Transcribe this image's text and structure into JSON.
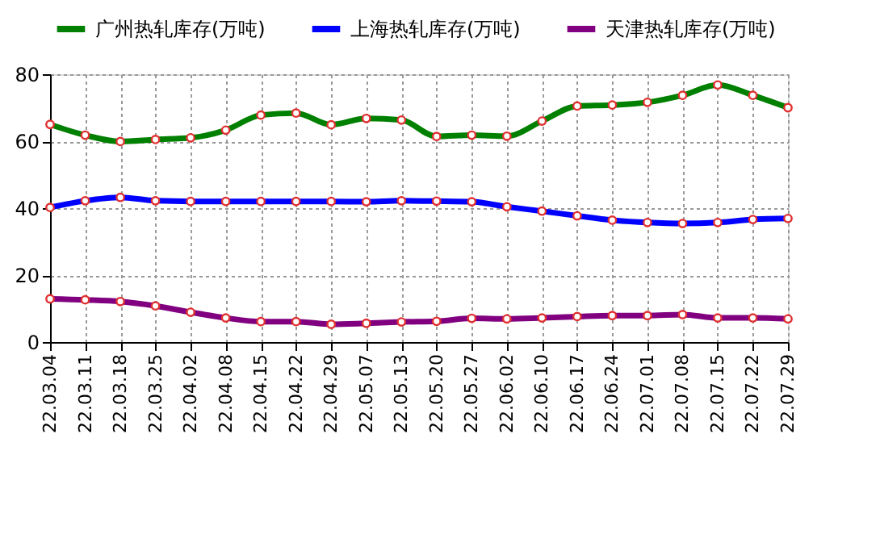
{
  "chart_data": {
    "type": "line",
    "categories": [
      "22.03.04",
      "22.03.11",
      "22.03.18",
      "22.03.25",
      "22.04.02",
      "22.04.08",
      "22.04.15",
      "22.04.22",
      "22.04.29",
      "22.05.07",
      "22.05.13",
      "22.05.20",
      "22.05.27",
      "22.06.02",
      "22.06.10",
      "22.06.17",
      "22.06.24",
      "22.07.01",
      "22.07.08",
      "22.07.15",
      "22.07.22",
      "22.07.29"
    ],
    "series": [
      {
        "name": "广州热轧库存(万吨)",
        "color": "#008000",
        "values": [
          65.0,
          61.8,
          59.9,
          60.5,
          61.0,
          63.3,
          67.8,
          68.4,
          64.9,
          66.8,
          66.3,
          61.4,
          61.8,
          61.5,
          66.0,
          70.5,
          70.8,
          71.6,
          73.7,
          76.8,
          73.7,
          70.0
        ]
      },
      {
        "name": "上海热轧库存(万吨)",
        "color": "#0000ff",
        "values": [
          40.2,
          42.2,
          43.2,
          42.2,
          42.0,
          42.0,
          42.0,
          42.0,
          42.0,
          41.9,
          42.2,
          42.1,
          41.9,
          40.4,
          39.1,
          37.7,
          36.4,
          35.7,
          35.4,
          35.7,
          36.6,
          36.9
        ]
      },
      {
        "name": "天津热轧库存(万吨)",
        "color": "#800080",
        "values": [
          12.9,
          12.6,
          12.1,
          10.8,
          8.9,
          7.2,
          6.1,
          6.1,
          5.3,
          5.6,
          6.0,
          6.2,
          7.1,
          6.9,
          7.2,
          7.6,
          7.9,
          7.9,
          8.2,
          7.2,
          7.2,
          6.9
        ]
      }
    ],
    "ylim": [
      0,
      80
    ],
    "yticks": [
      0,
      20,
      40,
      60,
      80
    ],
    "grid": true,
    "legend": "top",
    "marker": "circle",
    "line_style": "solid"
  }
}
